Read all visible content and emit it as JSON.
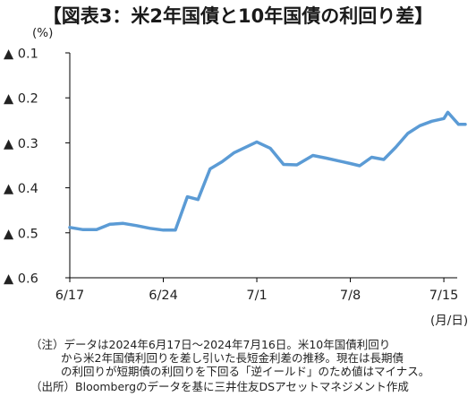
{
  "colors": {
    "line": "#5b9bd5",
    "axis": "#000000",
    "text": "#222222"
  },
  "chart_data": {
    "type": "line",
    "title": "【図表3：米2年国債と10年国債の利回り差】",
    "unit_label": "(%)",
    "x_unit_label": "(月/日)",
    "x_axis": {
      "tick_labels": [
        "6/17",
        "6/24",
        "7/1",
        "7/8",
        "7/15"
      ],
      "tick_positions_day_index": [
        0,
        7,
        14,
        21,
        28
      ],
      "range_day_index": [
        0,
        29
      ]
    },
    "y_axis": {
      "range": [
        -0.6,
        -0.1
      ],
      "inverted_display": false,
      "ticks": [
        -0.1,
        -0.2,
        -0.3,
        -0.4,
        -0.5,
        -0.6
      ],
      "tick_labels": [
        "▲ 0.1",
        "▲ 0.2",
        "▲ 0.3",
        "▲ 0.4",
        "▲ 0.5",
        "▲ 0.6"
      ],
      "grid": false
    },
    "legend": "none",
    "series": [
      {
        "points": [
          {
            "day_index": 0,
            "date": "6/17",
            "value": -0.488
          },
          {
            "day_index": 1,
            "date": "6/18",
            "value": -0.493
          },
          {
            "day_index": 2,
            "date": "6/19",
            "value": -0.493
          },
          {
            "day_index": 3,
            "date": "6/20",
            "value": -0.481
          },
          {
            "day_index": 4,
            "date": "6/21",
            "value": -0.479
          },
          {
            "day_index": 5,
            "date": "6/22",
            "value": -0.484
          },
          {
            "day_index": 6,
            "date": "6/23",
            "value": -0.49
          },
          {
            "day_index": 7,
            "date": "6/24",
            "value": -0.494
          },
          {
            "day_index": 7.9,
            "date": "6/25",
            "value": -0.494
          },
          {
            "day_index": 8.8,
            "date": "6/26",
            "value": -0.42
          },
          {
            "day_index": 9.6,
            "date": "6/27",
            "value": -0.426
          },
          {
            "day_index": 10.5,
            "date": "6/28",
            "value": -0.358
          },
          {
            "day_index": 11.4,
            "date": "6/29",
            "value": -0.342
          },
          {
            "day_index": 12.3,
            "date": "6/30",
            "value": -0.322
          },
          {
            "day_index": 14,
            "date": "7/1",
            "value": -0.298
          },
          {
            "day_index": 15,
            "date": "7/2",
            "value": -0.312
          },
          {
            "day_index": 16,
            "date": "7/3",
            "value": -0.348
          },
          {
            "day_index": 17,
            "date": "7/4",
            "value": -0.349
          },
          {
            "day_index": 18.2,
            "date": "7/5",
            "value": -0.328
          },
          {
            "day_index": 19.2,
            "date": "7/6",
            "value": -0.334
          },
          {
            "day_index": 21,
            "date": "7/8",
            "value": -0.346
          },
          {
            "day_index": 21.7,
            "date": "7/9",
            "value": -0.351
          },
          {
            "day_index": 22.6,
            "date": "7/10",
            "value": -0.332
          },
          {
            "day_index": 23.5,
            "date": "7/11",
            "value": -0.337
          },
          {
            "day_index": 24.4,
            "date": "7/12",
            "value": -0.31
          },
          {
            "day_index": 25.3,
            "date": "7/13",
            "value": -0.279
          },
          {
            "day_index": 26.2,
            "date": "7/14",
            "value": -0.262
          },
          {
            "day_index": 27.1,
            "date": "7/15",
            "value": -0.252
          },
          {
            "day_index": 28,
            "date": "7/15b",
            "value": -0.246
          },
          {
            "day_index": 28.3,
            "date": "7/16a",
            "value": -0.232
          },
          {
            "day_index": 29.1,
            "date": "7/16b",
            "value": -0.259
          },
          {
            "day_index": 29.6,
            "date": "7/16",
            "value": -0.259
          }
        ]
      }
    ]
  },
  "notes": [
    {
      "prefix": "（注）",
      "text": "データは2024年6月17日～2024年7月16日。米10年国債利回り"
    },
    {
      "prefix": "",
      "text": "から米2年国債利回りを差し引いた長短金利差の推移。現在は長期債"
    },
    {
      "prefix": "",
      "text": "の利回りが短期債の利回りを下回る「逆イールド」のため値はマイナス。"
    },
    {
      "prefix": "（出所）",
      "text": "Bloombergのデータを基に三井住友DSアセットマネジメント作成"
    }
  ]
}
